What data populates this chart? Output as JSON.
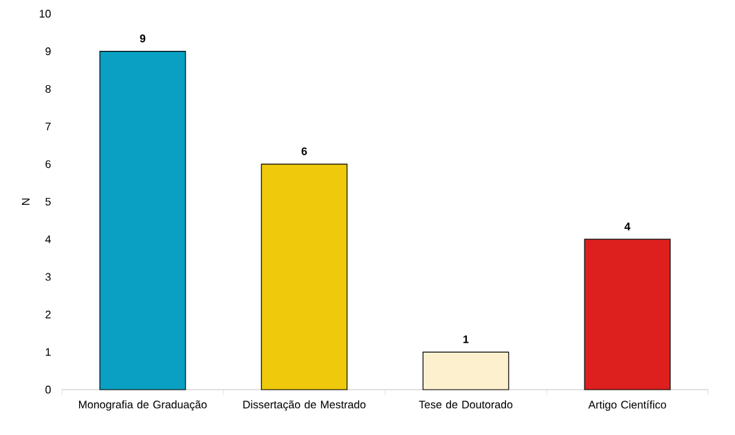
{
  "chart_data": {
    "type": "bar",
    "ylabel": "N",
    "categories": [
      "Monografia de Graduação",
      "Dissertação de Mestrado",
      "Tese de Doutorado",
      "Artigo Científico"
    ],
    "values": [
      9,
      6,
      1,
      4
    ],
    "colors": [
      "#0aa0c3",
      "#efc90b",
      "#fdf0cf",
      "#dd1f1e"
    ],
    "ylim": [
      0,
      10
    ],
    "yticks": [
      0,
      1,
      2,
      3,
      4,
      5,
      6,
      7,
      8,
      9,
      10
    ],
    "data_labels": true
  }
}
